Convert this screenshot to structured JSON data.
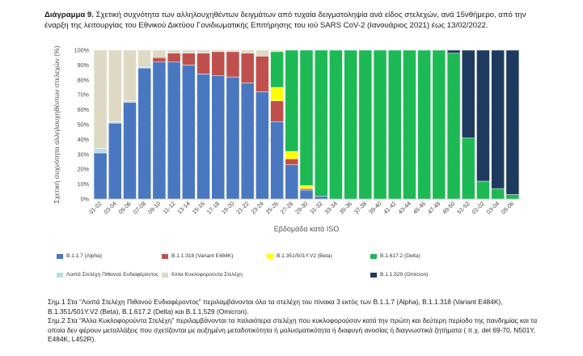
{
  "figure": {
    "label": "Διάγραμμα 9.",
    "caption": "Σχετική συχνότητα των αλληλουχηθέντων δειγμάτων από τυχαία δειγματοληψία ανά είδος στελεχών, ανά 15νθήμερο, από την έναρξη της λειτουργίας του Εθνικού Δικτύου Γονιδιωματικής Επιτήρησης του ιού SARS CoV-2 (Ιανουάριος 2021) έως 13/02/2022."
  },
  "chart_data": {
    "type": "bar",
    "stacked": true,
    "xlabel": "Εβδομάδα κατά ISO",
    "ylabel": "Σχετική συχνότητα αλληλουχηθέντων στελεχών (%)",
    "ylim": [
      0,
      100
    ],
    "yticks": [
      "0%",
      "10%",
      "20%",
      "30%",
      "40%",
      "50%",
      "60%",
      "70%",
      "80%",
      "90%",
      "100%"
    ],
    "grid": true,
    "legend_position": "bottom",
    "categories": [
      "01-02",
      "03-04",
      "05-06",
      "07-08",
      "09-10",
      "11-12",
      "13-14",
      "15-16",
      "17-18",
      "19-20",
      "21-22",
      "23-24",
      "25-26",
      "27-28",
      "29-30",
      "31-32",
      "33-34",
      "35-36",
      "37-38",
      "39-40",
      "41-42",
      "43-44",
      "45-46",
      "47-48",
      "49-50",
      "51-52",
      "01-02",
      "03-04",
      "05-06"
    ],
    "series": [
      {
        "name": "B.1.1.7 (Alpha)",
        "color": "#4a78c0",
        "values": [
          31,
          51,
          65,
          88,
          92,
          92,
          90,
          84,
          83,
          82,
          78,
          72,
          52,
          23,
          6,
          2,
          0,
          0,
          0,
          0,
          0,
          0,
          0,
          0,
          0,
          0,
          0,
          0,
          0
        ]
      },
      {
        "name": "B.1.1.318 (Variant E484K)",
        "color": "#c0504d",
        "values": [
          0,
          0,
          0,
          0,
          3,
          6,
          8,
          14,
          16,
          17,
          20,
          24,
          14,
          4,
          1,
          0,
          0,
          0,
          0,
          0,
          0,
          0,
          0,
          0,
          0,
          0,
          0,
          0,
          0
        ]
      },
      {
        "name": "B.1.351/501Y.V2 (Beta)",
        "color": "#ffff00",
        "values": [
          0,
          0,
          0,
          0,
          0,
          0,
          0,
          0,
          0,
          0,
          0,
          0,
          9,
          5,
          2,
          0,
          0,
          0,
          0,
          0,
          0,
          0,
          0,
          0,
          0,
          0,
          0,
          0,
          0
        ]
      },
      {
        "name": "B.1.617.2 (Delta)",
        "color": "#1db954",
        "values": [
          0,
          0,
          0,
          0,
          0,
          0,
          0,
          0,
          0,
          0,
          0,
          0,
          24,
          68,
          91,
          98,
          100,
          100,
          100,
          100,
          100,
          100,
          100,
          100,
          98,
          41,
          12,
          7,
          3
        ]
      },
      {
        "name": "B.1.1.529 (Omicron)",
        "color": "#1f3a5f",
        "values": [
          0,
          0,
          0,
          0,
          0,
          0,
          0,
          0,
          0,
          0,
          0,
          0,
          0,
          0,
          0,
          0,
          0,
          0,
          0,
          0,
          0,
          0,
          0,
          0,
          2,
          59,
          88,
          93,
          97
        ]
      },
      {
        "name": "Λοιπά Στελέχη Πιθανού Ενδιαφέροντος",
        "color": "#b7dde8",
        "values": [
          3,
          1,
          1,
          1,
          0,
          0,
          0,
          0,
          0,
          0,
          0,
          0,
          0,
          0,
          0,
          0,
          0,
          0,
          0,
          0,
          0,
          0,
          0,
          0,
          0,
          0,
          0,
          0,
          0
        ]
      },
      {
        "name": "Άλλα Κυκλοφορούντα Στελέχη",
        "color": "#ddd9c3",
        "values": [
          66,
          48,
          34,
          11,
          5,
          2,
          2,
          2,
          1,
          1,
          2,
          4,
          1,
          0,
          0,
          0,
          0,
          0,
          0,
          0,
          0,
          0,
          0,
          0,
          0,
          0,
          0,
          0,
          0
        ]
      }
    ]
  },
  "notes": [
    "Σημ.1 Στα “Λοιπά Στελέχη Πιθανού Ενδιαφέροντος” περιλαμβάνονται όλα τα στελέχη του πίνακα 3 εκτός των B.1.1.7 (Alpha), B.1.1.318 (Variant E484K), B.1.351/501Y.V2 (Beta), B.1.617.2 (Delta) και B.1.1.529 (Omicron).",
    "Σημ.2 Στα “Άλλα Κυκλοφορούντα Στελέχη” περιλαμβάνονται τα παλαιότερα στελέχη που κυκλοφορούσαν κατά την πρώτη και δεύτερη περίοδο της πανδημίας και τα οποία δεν φέρουν μεταλλάξεις που σχετίζονται με αυξημένη μεταδοτικότητα ή μολυσματικότητα ή διαφυγή ανοσίας ή διαγνωστικά ζητήματα ( π.χ. del 69-70, N501Y, E484K, L452R)."
  ]
}
